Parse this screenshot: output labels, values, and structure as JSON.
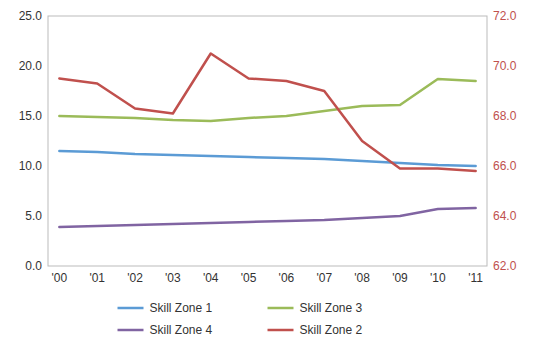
{
  "chart_data": {
    "type": "line",
    "x": [
      2000,
      2001,
      2002,
      2003,
      2004,
      2005,
      2006,
      2007,
      2008,
      2009,
      2010,
      2011
    ],
    "xlim": [
      1999.7,
      2011.3
    ],
    "xticks": [
      {
        "value": 2000,
        "label": "'00"
      },
      {
        "value": 2001,
        "label": "'01"
      },
      {
        "value": 2002,
        "label": "'02"
      },
      {
        "value": 2003,
        "label": "'03"
      },
      {
        "value": 2004,
        "label": "'04"
      },
      {
        "value": 2005,
        "label": "'05"
      },
      {
        "value": 2006,
        "label": "'06"
      },
      {
        "value": 2007,
        "label": "'07"
      },
      {
        "value": 2008,
        "label": "'08"
      },
      {
        "value": 2009,
        "label": "'09"
      },
      {
        "value": 2010,
        "label": "'10"
      },
      {
        "value": 2011,
        "label": "'11"
      }
    ],
    "ylim": [
      0.0,
      25.0
    ],
    "yticks": [
      {
        "value": 0.0,
        "label": "0.0"
      },
      {
        "value": 5.0,
        "label": "5.0"
      },
      {
        "value": 10.0,
        "label": "10.0"
      },
      {
        "value": 15.0,
        "label": "15.0"
      },
      {
        "value": 20.0,
        "label": "20.0"
      },
      {
        "value": 25.0,
        "label": "25.0"
      }
    ],
    "y2lim": [
      62.0,
      72.0
    ],
    "y2ticks": [
      {
        "value": 62.0,
        "label": "62.0"
      },
      {
        "value": 64.0,
        "label": "64.0"
      },
      {
        "value": 66.0,
        "label": "66.0"
      },
      {
        "value": 68.0,
        "label": "68.0"
      },
      {
        "value": 70.0,
        "label": "70.0"
      },
      {
        "value": 72.0,
        "label": "72.0"
      }
    ],
    "series": [
      {
        "name": "Skill Zone 1",
        "color": "#5b9bd5",
        "values": [
          11.5,
          11.4,
          11.2,
          11.1,
          11.0,
          10.9,
          10.8,
          10.7,
          10.5,
          10.3,
          10.1,
          10.0
        ]
      },
      {
        "name": "Skill Zone 3",
        "color": "#9bbb59",
        "values": [
          15.0,
          14.9,
          14.8,
          14.6,
          14.5,
          14.8,
          15.0,
          15.5,
          16.0,
          16.1,
          18.7,
          18.5
        ]
      },
      {
        "name": "Skill Zone 4",
        "color": "#8064a2",
        "values": [
          3.9,
          4.0,
          4.1,
          4.2,
          4.3,
          4.4,
          4.5,
          4.6,
          4.8,
          5.0,
          5.7,
          5.8
        ]
      },
      {
        "name": "Skill Zone 2",
        "color": "#c0504d",
        "axis": "y2",
        "values": [
          69.5,
          69.3,
          68.3,
          68.1,
          70.5,
          69.5,
          69.4,
          69.0,
          67.0,
          65.9,
          65.9,
          65.8
        ]
      }
    ],
    "grid": false,
    "legend": "bottom"
  }
}
